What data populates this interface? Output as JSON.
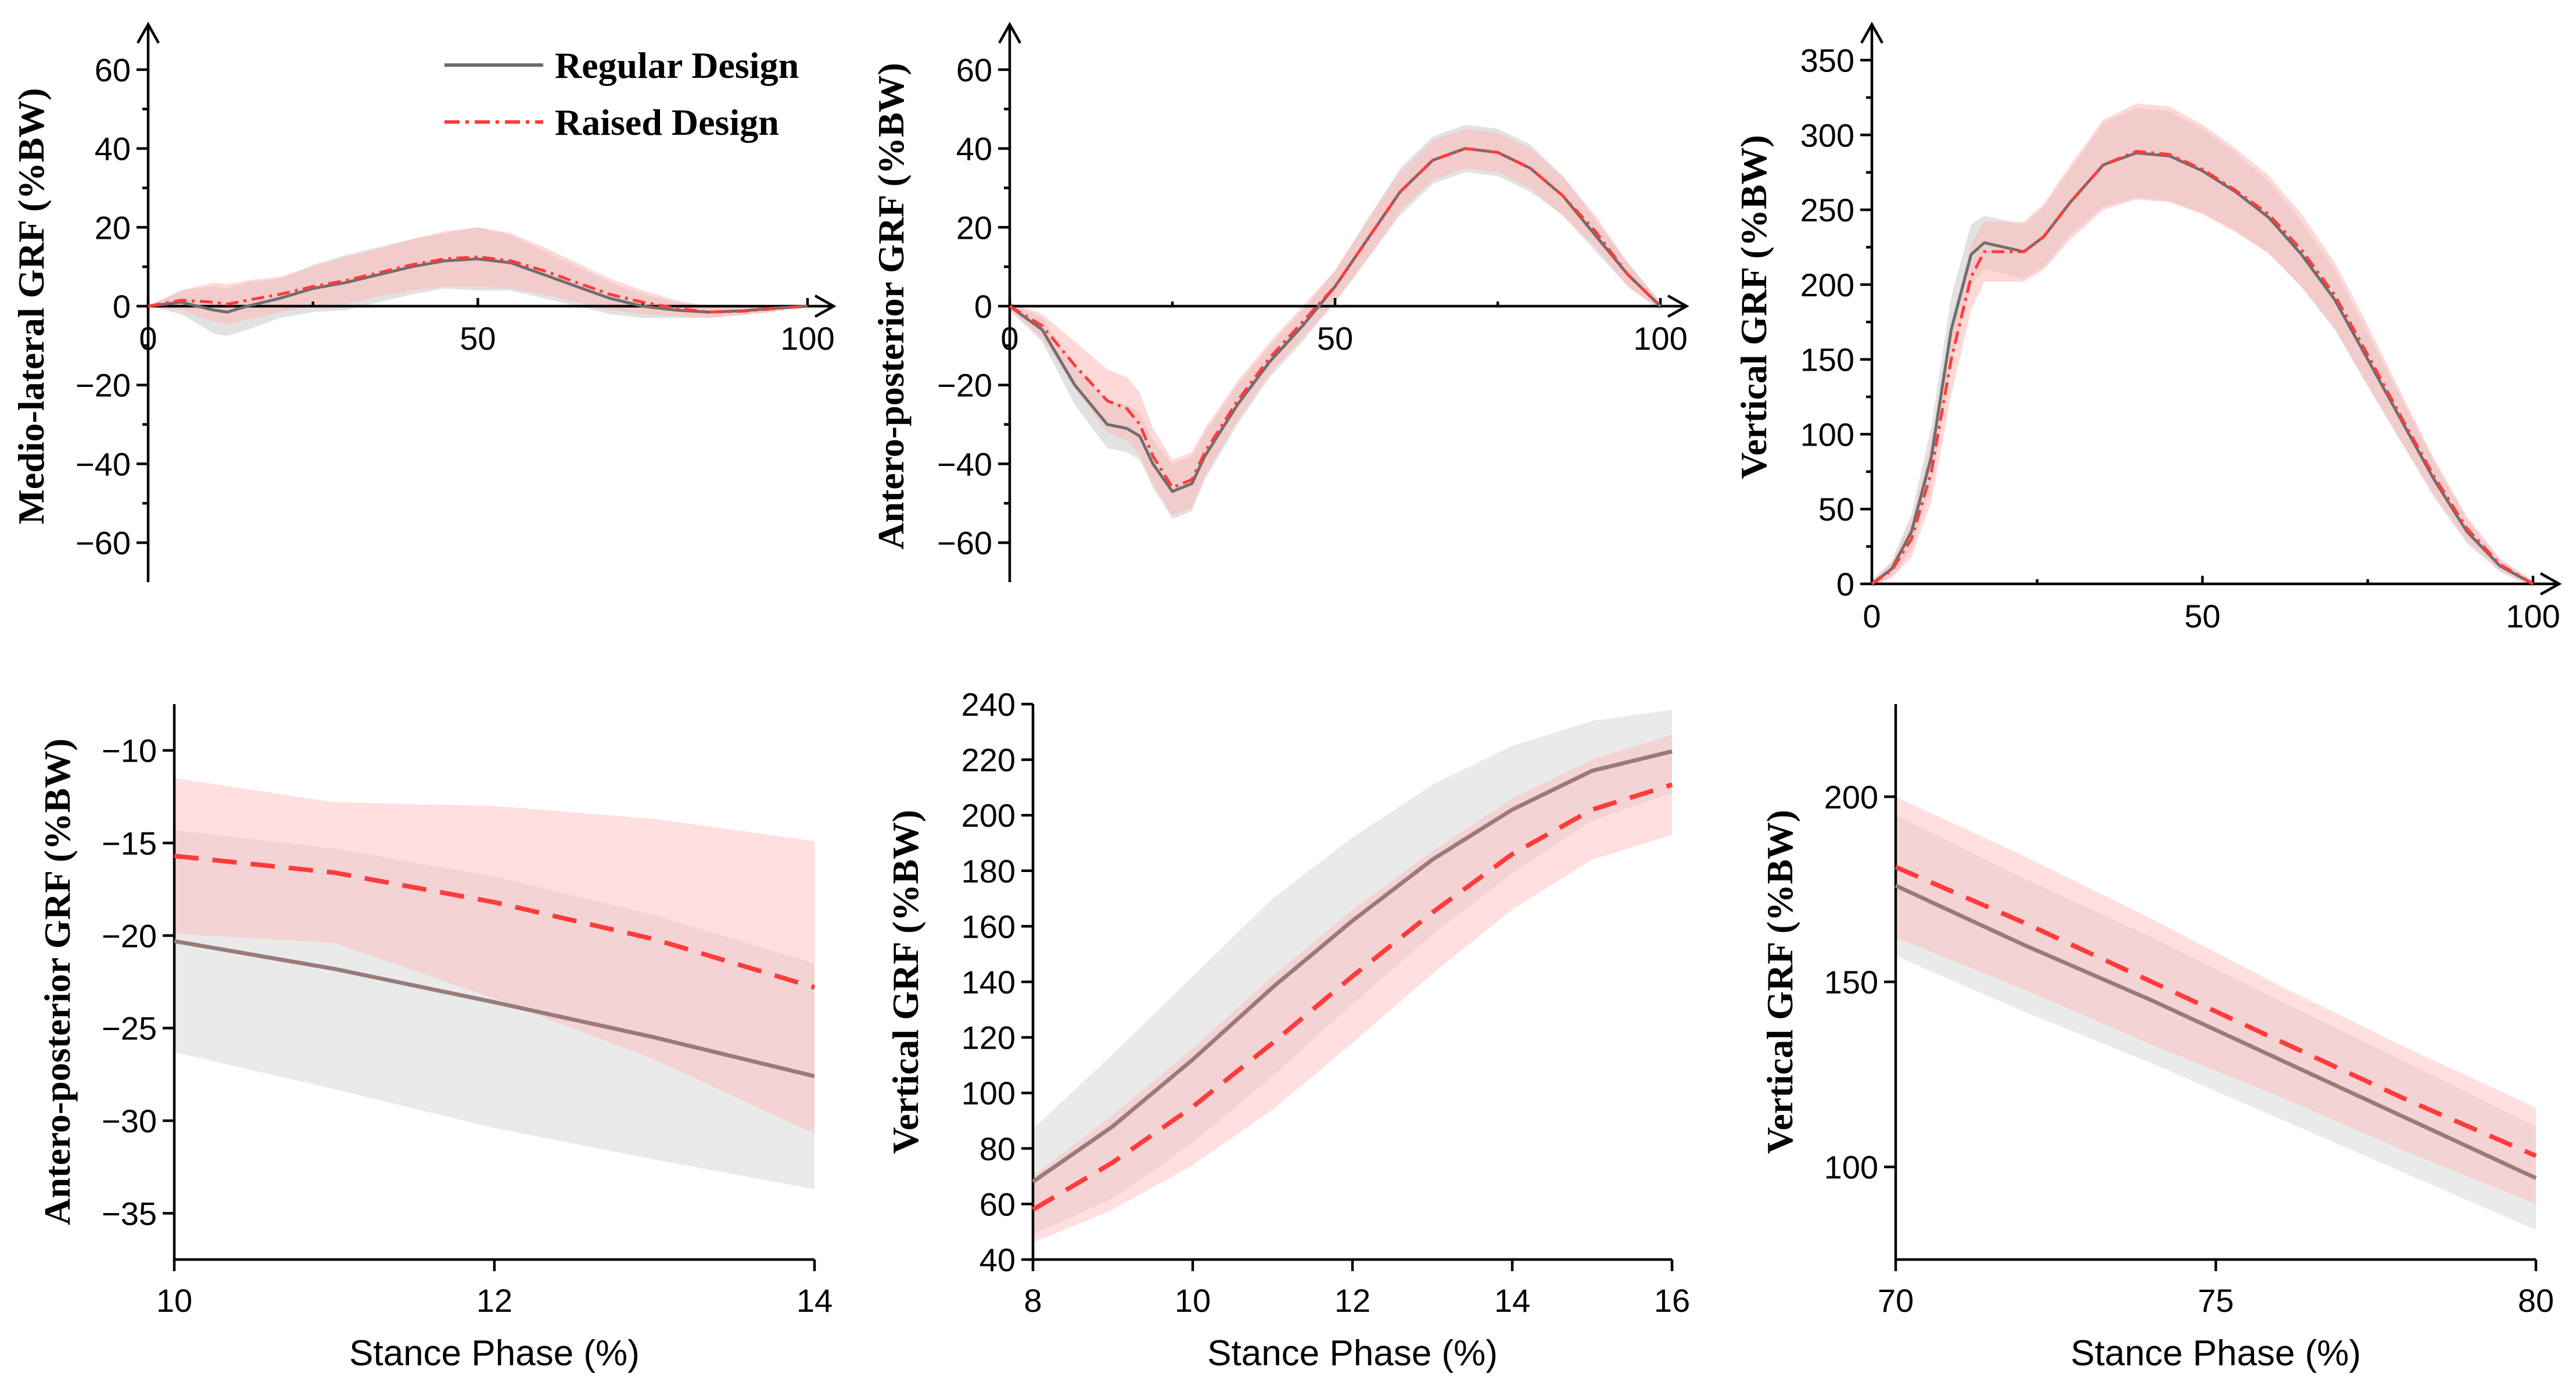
{
  "legend": {
    "regular_label": "Regular Design",
    "raised_label": "Raised Design",
    "regular_color": "#6e6e6e",
    "raised_color": "#ff3b3b",
    "regular_band_color": "#d8d8d8",
    "raised_band_color": "#ffb8b8"
  },
  "chart_data": [
    {
      "id": "ml-full",
      "type": "line",
      "ylabel": "Medio-lateral GRF (%BW)",
      "xlabel": "",
      "xlim": [
        0,
        100
      ],
      "ylim": [
        -70,
        70
      ],
      "x_axis_at": 0,
      "arrows": true,
      "xticks": [
        0,
        50,
        100
      ],
      "yticks": [
        -60,
        -40,
        -20,
        0,
        20,
        40,
        60
      ],
      "x": [
        0,
        5,
        10,
        12,
        15,
        20,
        25,
        30,
        35,
        40,
        45,
        50,
        55,
        60,
        65,
        70,
        75,
        80,
        85,
        90,
        95,
        100
      ],
      "series": [
        {
          "name": "Regular Design",
          "values": [
            0,
            1,
            -1,
            -1.5,
            0,
            2,
            4.5,
            6,
            8,
            10,
            11.5,
            12,
            11,
            8,
            5,
            2,
            0,
            -1,
            -1.5,
            -1.2,
            -0.5,
            0
          ],
          "sd": [
            0,
            3,
            6,
            6,
            6,
            5,
            6,
            7,
            7,
            7,
            7,
            8,
            7,
            6,
            5,
            4,
            3,
            2,
            1.5,
            1,
            0.8,
            0
          ]
        },
        {
          "name": "Raised Design",
          "values": [
            0,
            1.5,
            1,
            0.5,
            1.5,
            3,
            5,
            6.5,
            8.5,
            10.5,
            12,
            12.5,
            11.5,
            9,
            6,
            3,
            1,
            -0.5,
            -1.5,
            -1.3,
            -0.6,
            0
          ],
          "sd": [
            0,
            2.5,
            5,
            5,
            5,
            4.5,
            5,
            6,
            6,
            6.5,
            7,
            7.5,
            7,
            6,
            5,
            4,
            3,
            2,
            1.5,
            1,
            0.8,
            0
          ]
        }
      ]
    },
    {
      "id": "ap-full",
      "type": "line",
      "ylabel": "Antero-posterior GRF (%BW)",
      "xlabel": "",
      "xlim": [
        0,
        100
      ],
      "ylim": [
        -70,
        70
      ],
      "x_axis_at": 0,
      "arrows": true,
      "xticks": [
        0,
        50,
        100
      ],
      "yticks": [
        -60,
        -40,
        -20,
        0,
        20,
        40,
        60
      ],
      "x": [
        0,
        5,
        10,
        15,
        18,
        20,
        22,
        25,
        28,
        30,
        35,
        40,
        45,
        50,
        55,
        60,
        65,
        70,
        75,
        80,
        85,
        90,
        95,
        100
      ],
      "series": [
        {
          "name": "Regular Design",
          "values": [
            0,
            -6,
            -20,
            -30,
            -31,
            -33,
            -40,
            -47,
            -45,
            -38,
            -25,
            -14,
            -5,
            5,
            17,
            29,
            37,
            40,
            39,
            35,
            28,
            18,
            8,
            0
          ],
          "sd": [
            1,
            3,
            5,
            6,
            6,
            6,
            6,
            7,
            7,
            6,
            5,
            4,
            4,
            4,
            5,
            6,
            6,
            6,
            6,
            6,
            5,
            4,
            3,
            1
          ]
        },
        {
          "name": "Raised Design",
          "values": [
            0,
            -5,
            -15,
            -24,
            -26,
            -30,
            -38,
            -46,
            -44,
            -37,
            -24,
            -13,
            -4,
            5,
            17,
            29,
            37,
            40,
            39,
            35,
            28,
            19,
            8,
            0
          ],
          "sd": [
            1,
            3,
            6,
            8,
            8,
            8,
            7,
            7,
            7,
            6,
            5,
            4,
            4,
            4,
            5,
            5,
            5,
            5,
            5,
            5,
            5,
            4,
            3,
            1
          ]
        }
      ]
    },
    {
      "id": "v-full",
      "type": "line",
      "ylabel": "Vertical GRF (%BW)",
      "xlabel": "",
      "xlim": [
        0,
        100
      ],
      "ylim": [
        0,
        370
      ],
      "x_axis_at": 0,
      "arrows": true,
      "xticks": [
        0,
        50,
        100
      ],
      "yticks": [
        0,
        50,
        100,
        150,
        200,
        250,
        300,
        350
      ],
      "x": [
        0,
        3,
        6,
        9,
        12,
        15,
        17,
        20,
        23,
        26,
        30,
        35,
        40,
        45,
        50,
        55,
        60,
        65,
        70,
        75,
        80,
        85,
        90,
        95,
        100
      ],
      "series": [
        {
          "name": "Regular Design",
          "values": [
            0,
            10,
            35,
            85,
            170,
            220,
            228,
            225,
            222,
            232,
            255,
            280,
            288,
            286,
            276,
            262,
            245,
            220,
            190,
            150,
            110,
            70,
            35,
            12,
            0
          ],
          "sd": [
            2,
            5,
            12,
            20,
            22,
            20,
            18,
            18,
            18,
            20,
            22,
            28,
            30,
            30,
            28,
            26,
            24,
            22,
            20,
            18,
            15,
            12,
            8,
            4,
            2
          ]
        },
        {
          "name": "Raised Design",
          "values": [
            0,
            9,
            30,
            75,
            150,
            205,
            222,
            222,
            222,
            232,
            255,
            280,
            289,
            287,
            277,
            263,
            247,
            223,
            193,
            153,
            112,
            72,
            37,
            13,
            0
          ],
          "sd": [
            2,
            5,
            12,
            20,
            24,
            22,
            20,
            20,
            20,
            22,
            25,
            30,
            32,
            32,
            30,
            28,
            26,
            24,
            22,
            20,
            16,
            12,
            8,
            4,
            2
          ]
        }
      ]
    },
    {
      "id": "ap-zoom",
      "type": "line",
      "ylabel": "Antero-posterior GRF (%BW)",
      "xlabel": "Stance Phase (%)",
      "xlim": [
        10,
        14
      ],
      "ylim": [
        -37.5,
        -7.5
      ],
      "arrows": false,
      "xticks": [
        10,
        12,
        14
      ],
      "yticks": [
        -35,
        -30,
        -25,
        -20,
        -15,
        -10
      ],
      "x": [
        10,
        11,
        12,
        13,
        14
      ],
      "series": [
        {
          "name": "Regular Design",
          "values": [
            -20.3,
            -21.8,
            -23.6,
            -25.5,
            -27.6
          ],
          "sd": [
            6,
            6.5,
            6.8,
            6.6,
            6.1
          ]
        },
        {
          "name": "Raised Design",
          "values": [
            -15.7,
            -16.6,
            -18.2,
            -20.2,
            -22.8
          ],
          "sd": [
            4.2,
            3.8,
            5.2,
            6.5,
            7.9
          ]
        }
      ]
    },
    {
      "id": "v-zoom-early",
      "type": "line",
      "ylabel": "Vertical GRF (%BW)",
      "xlabel": "Stance Phase (%)",
      "xlim": [
        8,
        16
      ],
      "ylim": [
        40,
        240
      ],
      "arrows": false,
      "xticks": [
        8,
        10,
        12,
        14,
        16
      ],
      "yticks": [
        40,
        60,
        80,
        100,
        120,
        140,
        160,
        180,
        200,
        220,
        240
      ],
      "x": [
        8,
        9,
        10,
        11,
        12,
        13,
        14,
        15,
        16
      ],
      "series": [
        {
          "name": "Regular Design",
          "values": [
            68,
            88,
            112,
            138,
            162,
            184,
            202,
            216,
            223
          ],
          "sd": [
            19,
            26,
            30,
            32,
            30,
            27,
            23,
            18,
            15
          ]
        },
        {
          "name": "Raised Design",
          "values": [
            58,
            75,
            95,
            118,
            142,
            165,
            186,
            202,
            211
          ],
          "sd": [
            12,
            17,
            21,
            24,
            24,
            22,
            20,
            18,
            18
          ]
        }
      ]
    },
    {
      "id": "v-zoom-late",
      "type": "line",
      "ylabel": "Vertical GRF (%BW)",
      "xlabel": "Stance Phase (%)",
      "xlim": [
        70,
        80
      ],
      "ylim": [
        75,
        225
      ],
      "arrows": false,
      "xticks": [
        70,
        75,
        80
      ],
      "yticks": [
        100,
        150,
        200
      ],
      "x": [
        70,
        72,
        74,
        76,
        78,
        80
      ],
      "series": [
        {
          "name": "Regular Design",
          "values": [
            176,
            160,
            145,
            129,
            113,
            97
          ],
          "sd": [
            19,
            18,
            17,
            16,
            15,
            14
          ]
        },
        {
          "name": "Raised Design",
          "values": [
            181,
            166,
            150,
            134,
            118,
            103
          ],
          "sd": [
            19,
            18,
            17,
            15,
            14,
            13
          ]
        }
      ]
    }
  ]
}
